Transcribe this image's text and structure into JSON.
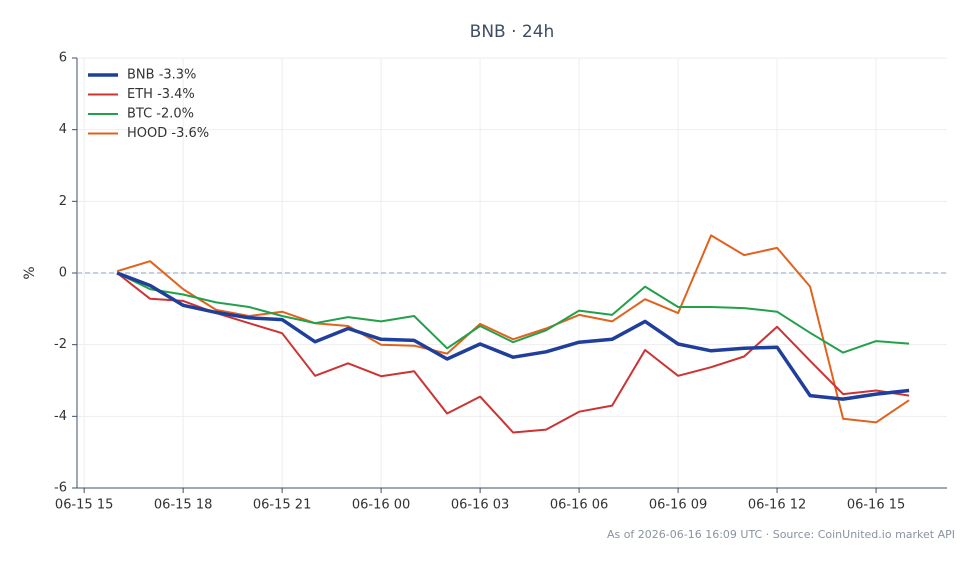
{
  "chart_data": {
    "type": "line",
    "title": "BNB · 24h",
    "ylabel": "%",
    "footnote": "As of 2026-06-16 16:09 UTC · Source: CoinUnited.io market API",
    "x": [
      "06-15 16",
      "06-15 17",
      "06-15 18",
      "06-15 19",
      "06-15 20",
      "06-15 21",
      "06-15 22",
      "06-15 23",
      "06-16 00",
      "06-16 01",
      "06-16 02",
      "06-16 03",
      "06-16 04",
      "06-16 05",
      "06-16 06",
      "06-16 07",
      "06-16 08",
      "06-16 09",
      "06-16 10",
      "06-16 11",
      "06-16 12",
      "06-16 13",
      "06-16 14",
      "06-16 15",
      "06-16 16"
    ],
    "series": [
      {
        "name": "BNB -3.3%",
        "color": "#1f3f9a",
        "width": 3.5,
        "values": [
          0,
          -0.35,
          -0.9,
          -1.1,
          -1.25,
          -1.3,
          -1.92,
          -1.55,
          -1.85,
          -1.88,
          -2.4,
          -1.98,
          -2.35,
          -2.2,
          -1.93,
          -1.85,
          -1.35,
          -1.98,
          -2.17,
          -2.1,
          -2.07,
          -3.42,
          -3.52,
          -3.38,
          -3.28
        ]
      },
      {
        "name": "ETH -3.4%",
        "color": "#cc3333",
        "width": 2,
        "values": [
          0,
          -0.72,
          -0.78,
          -1.12,
          -1.4,
          -1.68,
          -2.87,
          -2.52,
          -2.88,
          -2.74,
          -3.92,
          -3.45,
          -4.45,
          -4.37,
          -3.87,
          -3.7,
          -2.15,
          -2.87,
          -2.63,
          -2.33,
          -1.5,
          -2.45,
          -3.38,
          -3.28,
          -3.42
        ]
      },
      {
        "name": "BTC -2.0%",
        "color": "#22a04a",
        "width": 2,
        "values": [
          0,
          -0.45,
          -0.6,
          -0.82,
          -0.95,
          -1.2,
          -1.4,
          -1.23,
          -1.35,
          -1.2,
          -2.1,
          -1.48,
          -1.93,
          -1.6,
          -1.05,
          -1.17,
          -0.38,
          -0.95,
          -0.95,
          -0.98,
          -1.08,
          -1.67,
          -2.22,
          -1.9,
          -1.97
        ]
      },
      {
        "name": "HOOD -3.6%",
        "color": "#e0621e",
        "width": 2,
        "values": [
          0.05,
          0.33,
          -0.45,
          -1.03,
          -1.2,
          -1.08,
          -1.4,
          -1.48,
          -2.0,
          -2.03,
          -2.25,
          -1.42,
          -1.85,
          -1.55,
          -1.17,
          -1.35,
          -0.73,
          -1.12,
          1.05,
          0.5,
          0.7,
          -0.38,
          -4.07,
          -4.17,
          -3.55
        ]
      }
    ],
    "xlim": [
      "06-15 14:47",
      "06-16 17:09"
    ],
    "xticks": [
      "06-15 15",
      "06-15 18",
      "06-15 21",
      "06-16 00",
      "06-16 03",
      "06-16 06",
      "06-16 09",
      "06-16 12",
      "06-16 15"
    ],
    "ylim": [
      -6,
      6
    ],
    "yticks": [
      -6,
      -4,
      -2,
      0,
      2,
      4,
      6
    ],
    "grid": true,
    "hline": 0,
    "legend": "upper left"
  }
}
